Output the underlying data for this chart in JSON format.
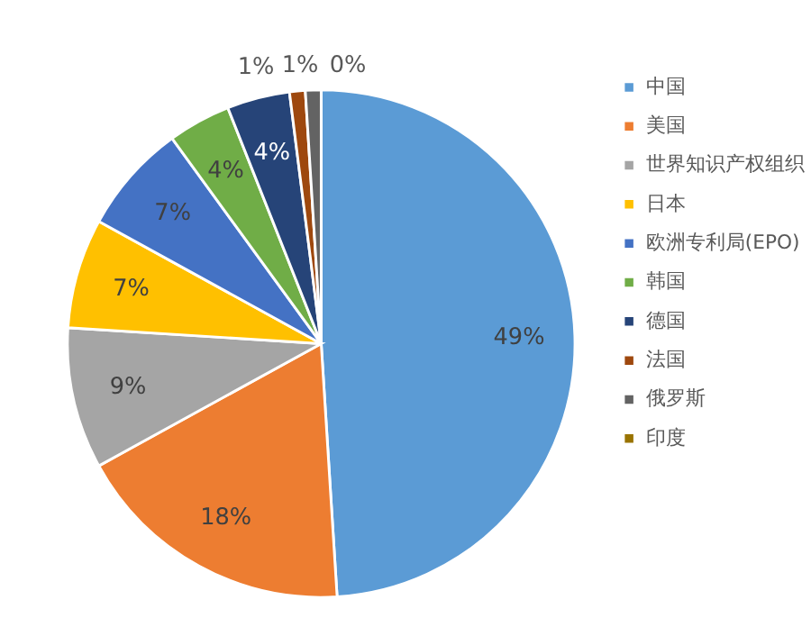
{
  "chart_data": {
    "type": "pie",
    "categories": [
      "中国",
      "美国",
      "世界知识产权组织",
      "日本",
      "欧洲专利局(EPO)",
      "韩国",
      "德国",
      "法国",
      "俄罗斯",
      "印度"
    ],
    "values": [
      49,
      18,
      9,
      7,
      7,
      4,
      4,
      1,
      1,
      0
    ],
    "value_labels": [
      "49%",
      "18%",
      "9%",
      "7%",
      "7%",
      "4%",
      "4%",
      "1%",
      "1%",
      "0%"
    ],
    "colors": [
      "#5b9bd5",
      "#ed7d31",
      "#a5a5a5",
      "#ffc000",
      "#4472c4",
      "#70ad47",
      "#264478",
      "#9e480e",
      "#636363",
      "#997300"
    ],
    "legend": "right"
  }
}
